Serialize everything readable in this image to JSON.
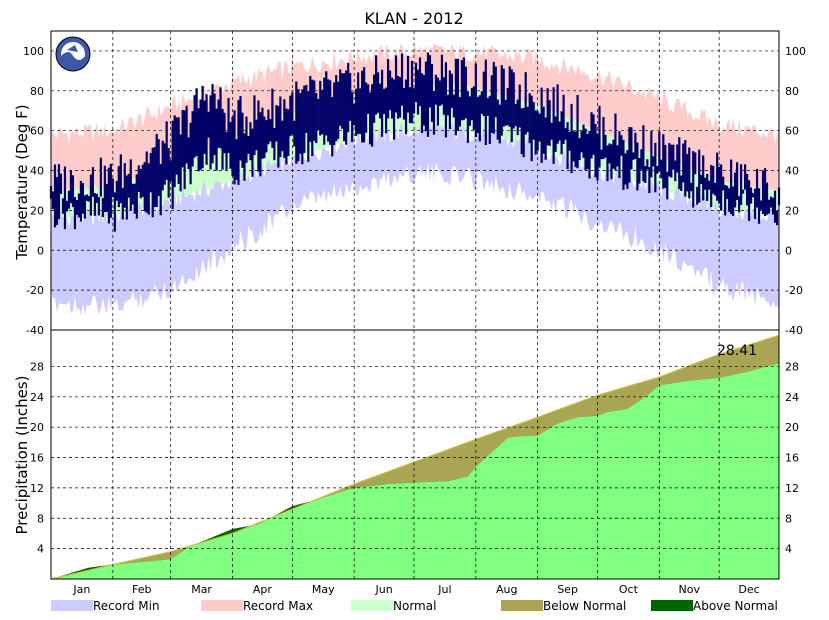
{
  "chart_data": [
    {
      "type": "area",
      "title": "KLAN - 2012",
      "ylabel": "Temperature (Deg F)",
      "ylim": [
        -40,
        110
      ],
      "yticks": [
        100,
        80,
        60,
        40,
        20,
        0,
        -20,
        -40
      ],
      "grid": true,
      "logo": "NOAA",
      "x_months": [
        "Jan",
        "Feb",
        "Mar",
        "Apr",
        "May",
        "Jun",
        "Jul",
        "Aug",
        "Sep",
        "Oct",
        "Nov",
        "Dec"
      ],
      "month_start_days": [
        1,
        32,
        61,
        92,
        122,
        153,
        183,
        214,
        245,
        275,
        306,
        336
      ],
      "days_in_year": 366,
      "record_max_profile": {
        "days": [
          1,
          32,
          61,
          92,
          122,
          153,
          183,
          214,
          245,
          275,
          306,
          336,
          366
        ],
        "values": [
          58,
          60,
          72,
          84,
          92,
          97,
          100,
          99,
          96,
          88,
          76,
          63,
          58
        ]
      },
      "record_min_profile": {
        "days": [
          1,
          32,
          61,
          92,
          122,
          153,
          183,
          214,
          245,
          275,
          306,
          336,
          366
        ],
        "values": [
          -22,
          -25,
          -15,
          5,
          25,
          35,
          43,
          40,
          30,
          18,
          5,
          -15,
          -22
        ]
      },
      "normal_high_profile": {
        "days": [
          1,
          32,
          61,
          92,
          122,
          153,
          183,
          214,
          245,
          275,
          306,
          336,
          366
        ],
        "values": [
          30,
          32,
          42,
          56,
          69,
          78,
          83,
          81,
          73,
          60,
          47,
          35,
          30
        ]
      },
      "normal_low_profile": {
        "days": [
          1,
          32,
          61,
          92,
          122,
          153,
          183,
          214,
          245,
          275,
          306,
          336,
          366
        ],
        "values": [
          16,
          17,
          25,
          35,
          46,
          56,
          60,
          59,
          51,
          40,
          31,
          21,
          16
        ]
      },
      "observed_high_profile": {
        "days": [
          1,
          32,
          61,
          80,
          92,
          122,
          153,
          183,
          214,
          245,
          275,
          306,
          336,
          366
        ],
        "values": [
          34,
          36,
          55,
          80,
          65,
          75,
          84,
          92,
          86,
          78,
          62,
          50,
          38,
          30
        ]
      },
      "observed_low_profile": {
        "days": [
          1,
          32,
          61,
          80,
          92,
          122,
          153,
          183,
          214,
          245,
          275,
          306,
          336,
          366
        ],
        "values": [
          20,
          18,
          28,
          50,
          40,
          50,
          58,
          66,
          62,
          52,
          42,
          34,
          26,
          20
        ]
      },
      "series": [
        {
          "name": "Record Min",
          "color": "#ccccff"
        },
        {
          "name": "Record Max",
          "color": "#ffcccc"
        },
        {
          "name": "Normal",
          "color": "#ccffcc"
        },
        {
          "name": "Observed",
          "color": "#000066"
        }
      ]
    },
    {
      "type": "area",
      "ylabel": "Precipitation (Inches)",
      "ylim": [
        0,
        32.8
      ],
      "yticks": [
        28,
        24,
        20,
        16,
        12,
        8,
        4
      ],
      "grid": true,
      "total_label": "28.41",
      "normal_cumulative": {
        "days": [
          1,
          32,
          61,
          92,
          122,
          153,
          183,
          214,
          245,
          275,
          306,
          336,
          366
        ],
        "values": [
          0,
          1.9,
          3.6,
          6.0,
          9.2,
          12.5,
          15.4,
          18.4,
          21.3,
          24.2,
          26.6,
          29.6,
          32.1
        ]
      },
      "observed_cumulative": {
        "days": [
          1,
          20,
          32,
          45,
          61,
          70,
          92,
          105,
          122,
          135,
          150,
          153,
          170,
          183,
          200,
          205,
          210,
          214,
          230,
          235,
          245,
          255,
          265,
          275,
          280,
          290,
          300,
          306,
          320,
          336,
          350,
          366
        ],
        "values": [
          0,
          1.5,
          1.9,
          2.2,
          2.6,
          4.2,
          6.6,
          7.2,
          9.6,
          10.5,
          11.8,
          12.0,
          12.5,
          12.7,
          12.9,
          13.2,
          13.5,
          14.8,
          18.6,
          18.8,
          18.9,
          20.5,
          21.3,
          21.5,
          22.0,
          22.4,
          24.2,
          25.5,
          26.1,
          26.5,
          27.3,
          28.41
        ]
      },
      "series": [
        {
          "name": "Below Normal",
          "color": "#aaa555"
        },
        {
          "name": "Above Normal",
          "color": "#006600"
        },
        {
          "name": "Observed",
          "color": "#80ff80"
        }
      ]
    }
  ],
  "legend": [
    {
      "label": "Record Min",
      "color": "#ccccff"
    },
    {
      "label": "Record Max",
      "color": "#ffcccc"
    },
    {
      "label": "Normal",
      "color": "#ccffcc"
    },
    {
      "label": "Below Normal",
      "color": "#aaa555"
    },
    {
      "label": "Above Normal",
      "color": "#006600"
    }
  ]
}
